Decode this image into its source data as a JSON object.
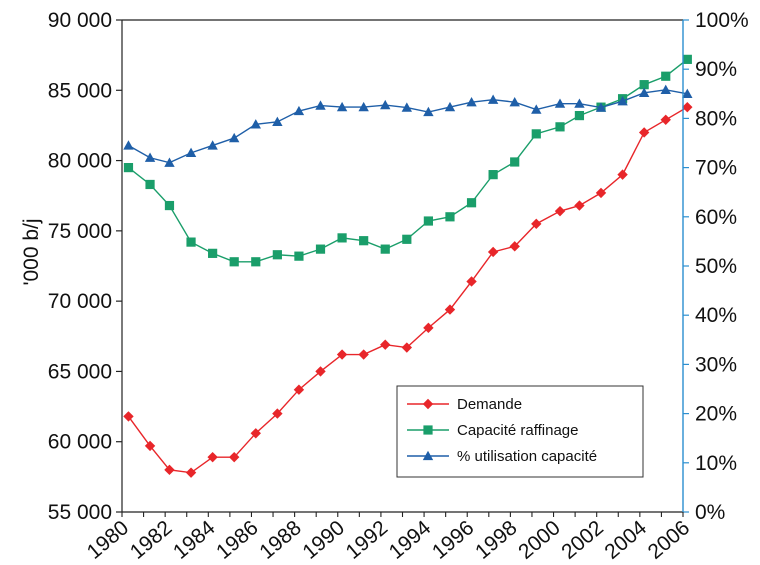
{
  "chart_data": {
    "type": "line",
    "title": "",
    "ylabel": "'000 b/j",
    "y2label": "",
    "ylim": [
      55000,
      90000
    ],
    "yticks": [
      55000,
      60000,
      65000,
      70000,
      75000,
      80000,
      85000,
      90000
    ],
    "ytick_labels": [
      "55 000",
      "60 000",
      "65 000",
      "70 000",
      "75 000",
      "80 000",
      "85 000",
      "90 000"
    ],
    "y2lim": [
      0,
      100
    ],
    "y2ticks": [
      0,
      10,
      20,
      30,
      40,
      50,
      60,
      70,
      80,
      90,
      100
    ],
    "y2tick_labels": [
      "0%",
      "10%",
      "20%",
      "30%",
      "40%",
      "50%",
      "60%",
      "70%",
      "80%",
      "90%",
      "100%"
    ],
    "xlim": [
      1980,
      2006
    ],
    "xticks": [
      1980,
      1982,
      1984,
      1986,
      1988,
      1990,
      1992,
      1994,
      1996,
      1998,
      2000,
      2002,
      2004,
      2006
    ],
    "xtick_labels": [
      "1980",
      "1982",
      "1984",
      "1986",
      "1988",
      "1990",
      "1992",
      "1994",
      "1996",
      "1998",
      "2000",
      "2002",
      "2004",
      "2006"
    ],
    "grid": false,
    "legend_position": "bottom-right",
    "series": [
      {
        "name": "Demande",
        "axis": "left",
        "color": "#e8262a",
        "marker": "diamond",
        "points": [
          [
            1980.3,
            61800
          ],
          [
            1981.3,
            59700
          ],
          [
            1982.2,
            58000
          ],
          [
            1983.2,
            57800
          ],
          [
            1984.2,
            58900
          ],
          [
            1985.2,
            58900
          ],
          [
            1986.2,
            60600
          ],
          [
            1987.2,
            62000
          ],
          [
            1988.2,
            63700
          ],
          [
            1989.2,
            65000
          ],
          [
            1990.2,
            66200
          ],
          [
            1991.2,
            66200
          ],
          [
            1992.2,
            66900
          ],
          [
            1993.2,
            66700
          ],
          [
            1994.2,
            68100
          ],
          [
            1995.2,
            69400
          ],
          [
            1996.2,
            71400
          ],
          [
            1997.2,
            73500
          ],
          [
            1998.2,
            73900
          ],
          [
            1999.2,
            75500
          ],
          [
            2000.3,
            76400
          ],
          [
            2001.2,
            76800
          ],
          [
            2002.2,
            77700
          ],
          [
            2003.2,
            79000
          ],
          [
            2004.2,
            82000
          ],
          [
            2005.2,
            82900
          ],
          [
            2006.2,
            83800
          ]
        ]
      },
      {
        "name": "Capacité raffinage",
        "axis": "left",
        "color": "#1a9e6a",
        "marker": "square",
        "points": [
          [
            1980.3,
            79500
          ],
          [
            1981.3,
            78300
          ],
          [
            1982.2,
            76800
          ],
          [
            1983.2,
            74200
          ],
          [
            1984.2,
            73400
          ],
          [
            1985.2,
            72800
          ],
          [
            1986.2,
            72800
          ],
          [
            1987.2,
            73300
          ],
          [
            1988.2,
            73200
          ],
          [
            1989.2,
            73700
          ],
          [
            1990.2,
            74500
          ],
          [
            1991.2,
            74300
          ],
          [
            1992.2,
            73700
          ],
          [
            1993.2,
            74400
          ],
          [
            1994.2,
            75700
          ],
          [
            1995.2,
            76000
          ],
          [
            1996.2,
            77000
          ],
          [
            1997.2,
            79000
          ],
          [
            1998.2,
            79900
          ],
          [
            1999.2,
            81900
          ],
          [
            2000.3,
            82400
          ],
          [
            2001.2,
            83200
          ],
          [
            2002.2,
            83800
          ],
          [
            2003.2,
            84400
          ],
          [
            2004.2,
            85400
          ],
          [
            2005.2,
            86000
          ],
          [
            2006.2,
            87200
          ]
        ]
      },
      {
        "name": "% utilisation capacité",
        "axis": "right",
        "color": "#1f5fa8",
        "marker": "triangle",
        "points": [
          [
            1980.3,
            74.5
          ],
          [
            1981.3,
            72.0
          ],
          [
            1982.2,
            71.0
          ],
          [
            1983.2,
            73.0
          ],
          [
            1984.2,
            74.5
          ],
          [
            1985.2,
            76.0
          ],
          [
            1986.2,
            78.8
          ],
          [
            1987.2,
            79.3
          ],
          [
            1988.2,
            81.5
          ],
          [
            1989.2,
            82.6
          ],
          [
            1990.2,
            82.3
          ],
          [
            1991.2,
            82.3
          ],
          [
            1992.2,
            82.7
          ],
          [
            1993.2,
            82.2
          ],
          [
            1994.2,
            81.3
          ],
          [
            1995.2,
            82.3
          ],
          [
            1996.2,
            83.3
          ],
          [
            1997.2,
            83.8
          ],
          [
            1998.2,
            83.3
          ],
          [
            1999.2,
            81.8
          ],
          [
            2000.3,
            83.0
          ],
          [
            2001.2,
            83.0
          ],
          [
            2002.2,
            82.2
          ],
          [
            2003.2,
            83.5
          ],
          [
            2004.2,
            85.2
          ],
          [
            2005.2,
            85.8
          ],
          [
            2006.2,
            85.0
          ]
        ]
      }
    ]
  }
}
